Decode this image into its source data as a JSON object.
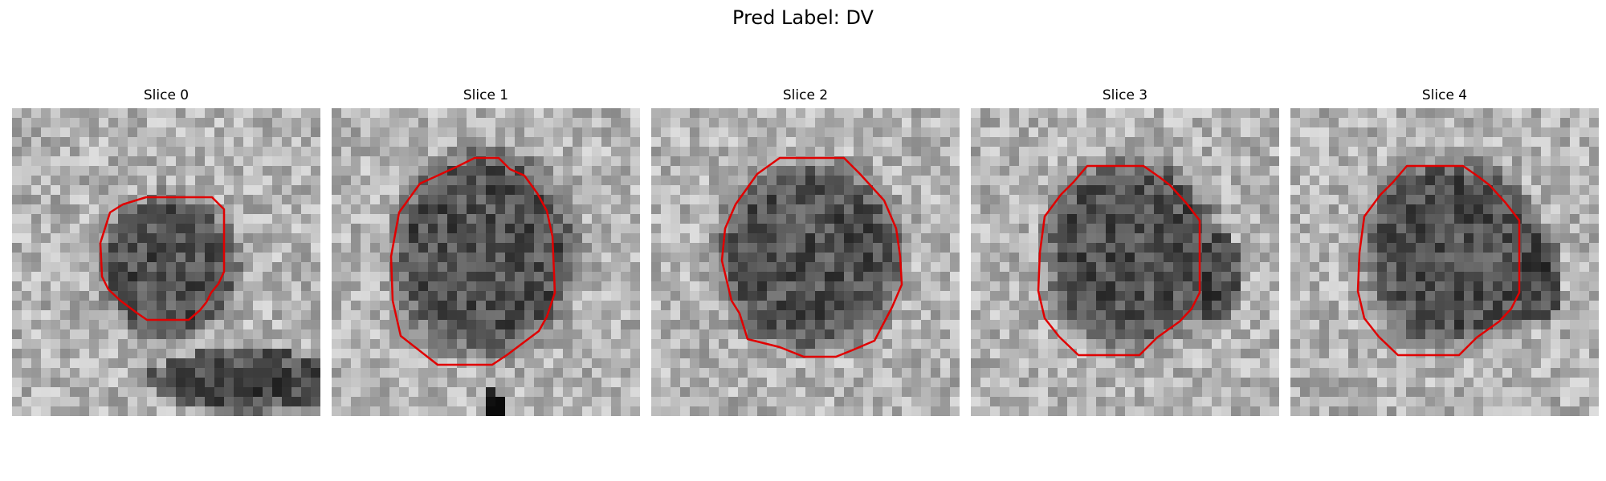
{
  "figure": {
    "title": "Pred Label: DV"
  },
  "style": {
    "contour_color": "#e00000",
    "colormap": "grayscale"
  },
  "slices": [
    {
      "label": "Slice 0"
    },
    {
      "label": "Slice 1"
    },
    {
      "label": "Slice 2"
    },
    {
      "label": "Slice 3"
    },
    {
      "label": "Slice 4"
    }
  ]
}
